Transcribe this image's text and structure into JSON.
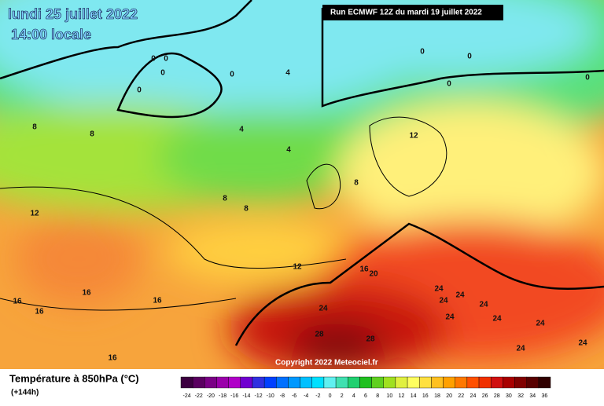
{
  "header": {
    "title": "lundi 25 juillet 2022",
    "time": "14:00 locale",
    "run": "Run ECMWF 12Z du mardi 19 juillet 2022"
  },
  "copyright": "Copyright 2022 Meteociel.fr",
  "legend": {
    "title": "Température à 850hPa (°C)",
    "lead": "(+144h)",
    "ticks": [
      -24,
      -22,
      -20,
      -18,
      -16,
      -14,
      -12,
      -10,
      -8,
      -6,
      -4,
      -2,
      0,
      2,
      4,
      6,
      8,
      10,
      12,
      14,
      16,
      18,
      20,
      22,
      24,
      26,
      28,
      30,
      32,
      34,
      36
    ],
    "colors": [
      "#3c0040",
      "#5a0060",
      "#7a0085",
      "#9a00aa",
      "#b000c8",
      "#7000d0",
      "#3030e0",
      "#0040ff",
      "#0070ff",
      "#0098ff",
      "#00c0ff",
      "#00e0ff",
      "#60f0f0",
      "#40e0b0",
      "#20d070",
      "#20c020",
      "#60d020",
      "#a0e020",
      "#e0f040",
      "#ffff60",
      "#ffe040",
      "#ffc020",
      "#ffa000",
      "#ff7800",
      "#ff5000",
      "#f03000",
      "#d01010",
      "#a80000",
      "#800000",
      "#580000",
      "#300000"
    ]
  },
  "contour_labels": [
    0,
    0,
    0,
    0,
    0,
    0,
    0,
    0,
    0,
    4,
    4,
    4,
    8,
    8,
    8,
    8,
    8,
    12,
    12,
    12,
    16,
    16,
    16,
    16,
    16,
    16,
    20,
    24,
    24,
    24,
    24,
    24,
    24,
    24,
    24,
    24,
    24,
    28,
    28
  ]
}
